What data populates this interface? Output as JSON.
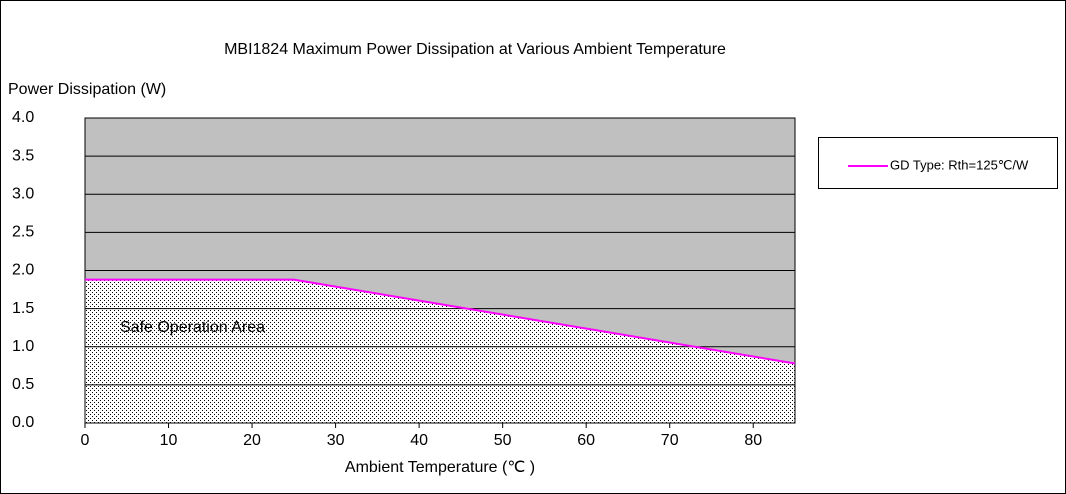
{
  "chart_data": {
    "type": "line",
    "title": "MBI1824 Maximum Power Dissipation at Various Ambient Temperature",
    "y_label": "Power Dissipation (W)",
    "x_label": "Ambient Temperature (℃ )",
    "annotation": "Safe Operation Area",
    "x": [
      0,
      25,
      85
    ],
    "series": [
      {
        "name": "GD Type: Rth=125℃/W",
        "color": "#ff00ff",
        "values": [
          1.88,
          1.88,
          0.78
        ]
      }
    ],
    "xlim": [
      0,
      85
    ],
    "xticks": [
      0,
      10,
      20,
      30,
      40,
      50,
      60,
      70,
      80
    ],
    "ylim": [
      0,
      4
    ],
    "yticks": [
      {
        "value": 0,
        "label": "0.0"
      },
      0.5,
      {
        "value": 1,
        "label": "1.0"
      },
      1.5,
      {
        "value": 2,
        "label": "2.0"
      },
      2.5,
      {
        "value": 3,
        "label": "3.0"
      },
      3.5,
      {
        "value": 4,
        "label": "4.0"
      }
    ],
    "grid": true,
    "legend": "right"
  }
}
